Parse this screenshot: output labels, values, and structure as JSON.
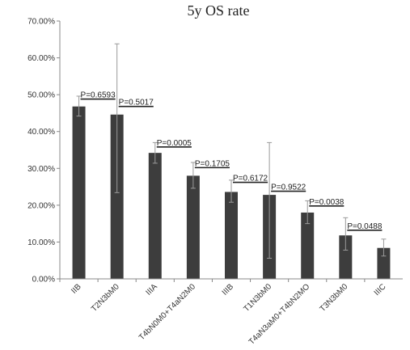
{
  "chart_data": {
    "type": "bar",
    "title": "5y OS rate",
    "xlabel": "",
    "ylabel": "",
    "ylim": [
      0,
      70
    ],
    "y_ticks": [
      0,
      10,
      20,
      30,
      40,
      50,
      60,
      70
    ],
    "y_tick_labels": [
      "0.00%",
      "10.00%",
      "20.00%",
      "30.00%",
      "40.00%",
      "50.00%",
      "60.00%",
      "70.00%"
    ],
    "grid": false,
    "bar_color": "#3d3d3d",
    "categories": [
      "IIB",
      "T2N3bM0",
      "IIIA",
      "T4bN0M0+T4aN2M0",
      "IIIB",
      "T1N3bM0",
      "T4aN3aM0+T4bN2MO",
      "T3N3bM0",
      "IIIC"
    ],
    "values": [
      46.8,
      44.6,
      34.2,
      28.0,
      23.6,
      22.8,
      18.0,
      11.8,
      8.4
    ],
    "error_upper": [
      49.6,
      63.8,
      37.0,
      31.6,
      26.8,
      37.0,
      21.2,
      16.6,
      10.8
    ],
    "error_lower": [
      44.2,
      23.4,
      31.4,
      24.6,
      20.8,
      5.6,
      15.0,
      7.8,
      6.2
    ],
    "p_values": [
      {
        "between": [
          0,
          1
        ],
        "label": "P=0.6593",
        "y": 48.8
      },
      {
        "between": [
          1,
          2
        ],
        "label": "P=0.5017",
        "y": 46.8
      },
      {
        "between": [
          2,
          3
        ],
        "label": "P=0.0005",
        "y": 35.8
      },
      {
        "between": [
          3,
          4
        ],
        "label": "P=0.1705",
        "y": 30.2
      },
      {
        "between": [
          4,
          5
        ],
        "label": "P=0.6172",
        "y": 26.2
      },
      {
        "between": [
          5,
          6
        ],
        "label": "P=0.9522",
        "y": 23.8
      },
      {
        "between": [
          6,
          7
        ],
        "label": "P=0.0038",
        "y": 19.8
      },
      {
        "between": [
          7,
          8
        ],
        "label": "P=0.0488",
        "y": 13.2
      }
    ]
  }
}
